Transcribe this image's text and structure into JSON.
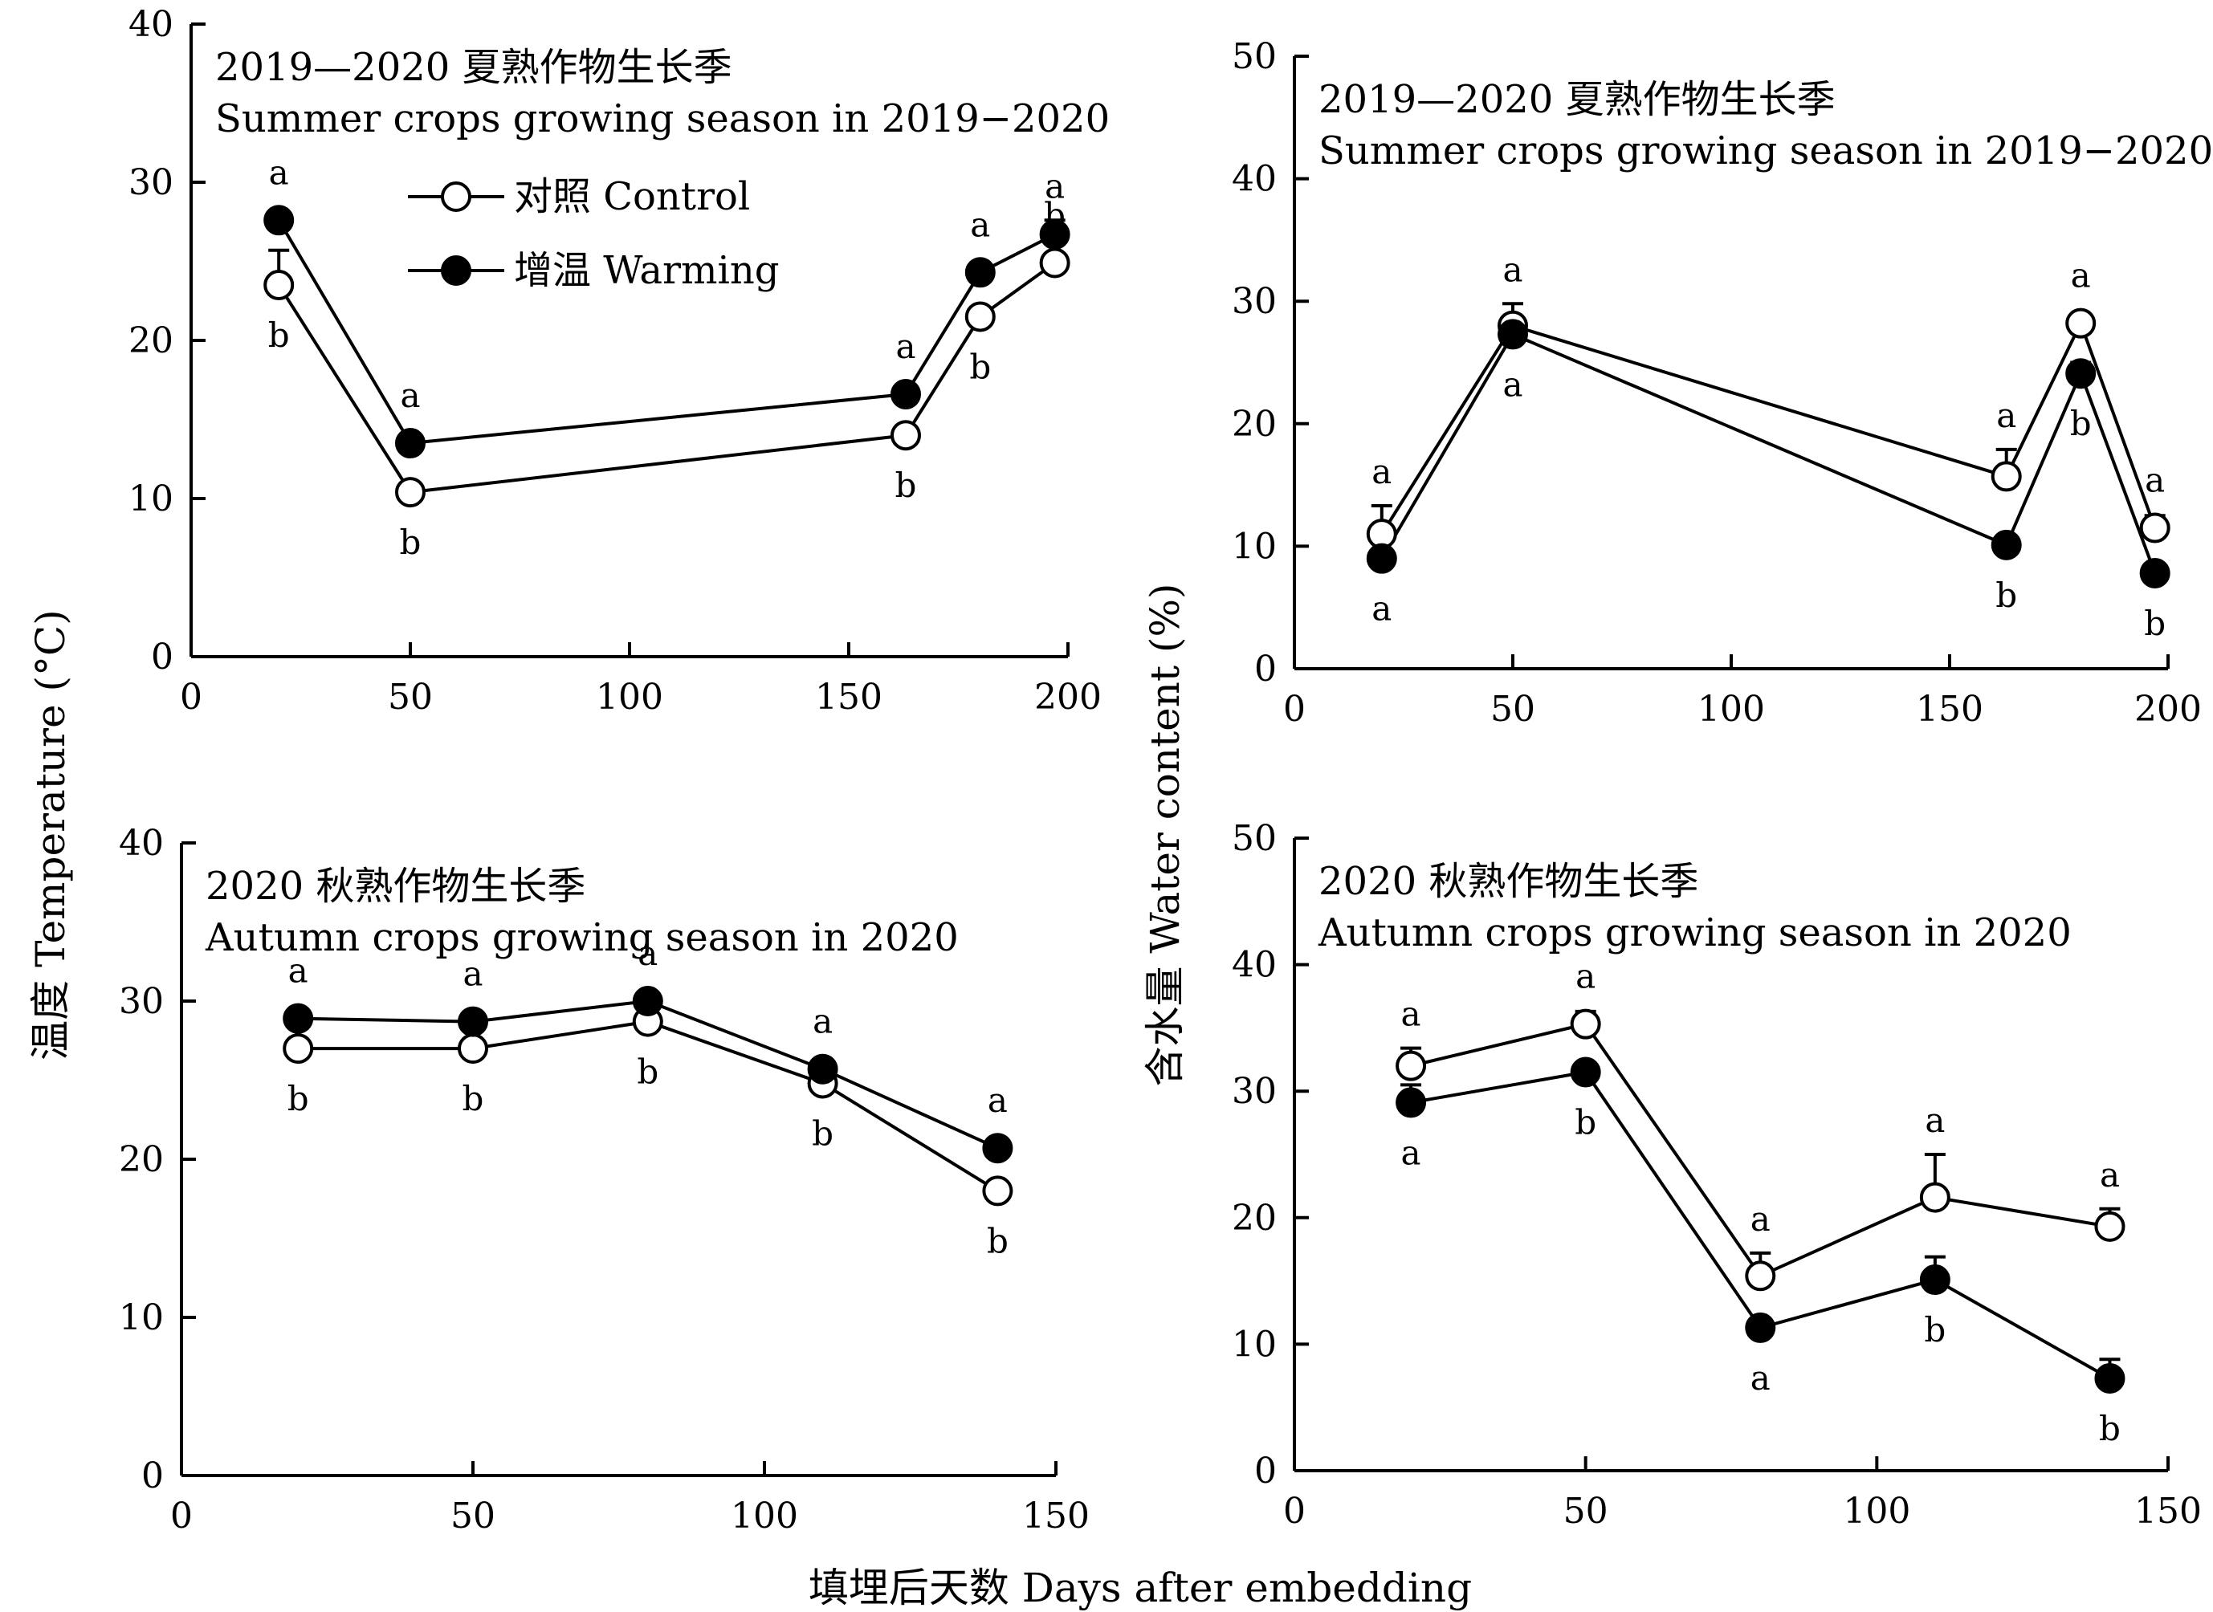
{
  "figure": {
    "ylabel_temperature": "温度 Temperature (°C)",
    "ylabel_water": "含水量 Water content (%)",
    "xlabel": "填埋后天数 Days after embedding"
  },
  "legend": {
    "control": "对照 Control",
    "warming": "增温 Warming"
  },
  "chart_data": [
    {
      "id": "temp_summer",
      "type": "line",
      "title": "2019—2020 夏熟作物生长季",
      "subtitle": "Summer crops growing season in 2019−2020",
      "xlim": [
        0,
        200
      ],
      "ylim": [
        0,
        40
      ],
      "xticks": [
        0,
        50,
        100,
        150,
        200
      ],
      "yticks": [
        0,
        10,
        20,
        30,
        40
      ],
      "x": [
        20,
        50,
        163,
        180,
        197
      ],
      "series": [
        {
          "name": "对照 Control",
          "values": [
            23.5,
            10.4,
            14.0,
            21.5,
            24.9
          ],
          "err": [
            2.2,
            0.4,
            0.6,
            0.6,
            0.5
          ],
          "letters": [
            "b",
            "b",
            "b",
            "b",
            "b"
          ]
        },
        {
          "name": "增温 Warming",
          "values": [
            27.6,
            13.5,
            16.6,
            24.3,
            26.7
          ],
          "err": [
            0.4,
            0.5,
            0.5,
            0.5,
            0.9
          ],
          "letters": [
            "a",
            "a",
            "a",
            "a",
            "a"
          ]
        }
      ]
    },
    {
      "id": "water_summer",
      "type": "line",
      "title": "2019—2020 夏熟作物生长季",
      "subtitle": "Summer crops growing season in 2019−2020",
      "xlim": [
        0,
        200
      ],
      "ylim": [
        0,
        50
      ],
      "xticks": [
        0,
        50,
        100,
        150,
        200
      ],
      "yticks": [
        0,
        10,
        20,
        30,
        40,
        50
      ],
      "x": [
        20,
        50,
        163,
        180,
        197
      ],
      "series": [
        {
          "name": "对照 Control",
          "values": [
            11.0,
            28.0,
            15.7,
            28.2,
            11.5
          ],
          "err": [
            2.3,
            1.8,
            2.2,
            0.5,
            1.0
          ],
          "letters": [
            "a",
            "a",
            "a",
            "a",
            "a"
          ]
        },
        {
          "name": "增温 Warming",
          "values": [
            9.0,
            27.3,
            10.1,
            24.1,
            7.8
          ],
          "err": [
            0.6,
            0.6,
            0.4,
            0.9,
            0.4
          ],
          "letters": [
            "a",
            "a",
            "b",
            "b",
            "b"
          ]
        }
      ]
    },
    {
      "id": "temp_autumn",
      "type": "line",
      "title": "2020 秋熟作物生长季",
      "subtitle": "Autumn crops growing season in 2020",
      "xlim": [
        0,
        150
      ],
      "ylim": [
        0,
        40
      ],
      "xticks": [
        0,
        50,
        100,
        150
      ],
      "yticks": [
        0,
        10,
        20,
        30,
        40
      ],
      "x": [
        20,
        50,
        80,
        110,
        140
      ],
      "series": [
        {
          "name": "对照 Control",
          "values": [
            27.0,
            27.0,
            28.7,
            24.8,
            18.0
          ],
          "err": [
            0.2,
            0.2,
            0.3,
            0.3,
            0.3
          ],
          "letters": [
            "b",
            "b",
            "b",
            "b",
            "b"
          ]
        },
        {
          "name": "增温 Warming",
          "values": [
            28.9,
            28.7,
            30.0,
            25.7,
            20.7
          ],
          "err": [
            0.2,
            0.2,
            0.3,
            0.4,
            0.3
          ],
          "letters": [
            "a",
            "a",
            "a",
            "a",
            "a"
          ]
        }
      ]
    },
    {
      "id": "water_autumn",
      "type": "line",
      "title": "2020 秋熟作物生长季",
      "subtitle": "Autumn crops growing season in 2020",
      "xlim": [
        0,
        150
      ],
      "ylim": [
        0,
        50
      ],
      "xticks": [
        0,
        50,
        100,
        150
      ],
      "yticks": [
        0,
        10,
        20,
        30,
        40,
        50
      ],
      "x": [
        20,
        50,
        80,
        110,
        140
      ],
      "series": [
        {
          "name": "对照 Control",
          "values": [
            32.0,
            35.3,
            15.4,
            21.6,
            19.3
          ],
          "err": [
            1.4,
            1.0,
            1.8,
            3.4,
            1.4
          ],
          "letters": [
            "a",
            "a",
            "a",
            "a",
            "a"
          ]
        },
        {
          "name": "增温 Warming",
          "values": [
            29.1,
            31.5,
            11.3,
            15.1,
            7.3
          ],
          "err": [
            1.4,
            0.6,
            0.6,
            1.8,
            1.5
          ],
          "letters": [
            "a",
            "b",
            "a",
            "b",
            "b"
          ]
        }
      ]
    }
  ]
}
